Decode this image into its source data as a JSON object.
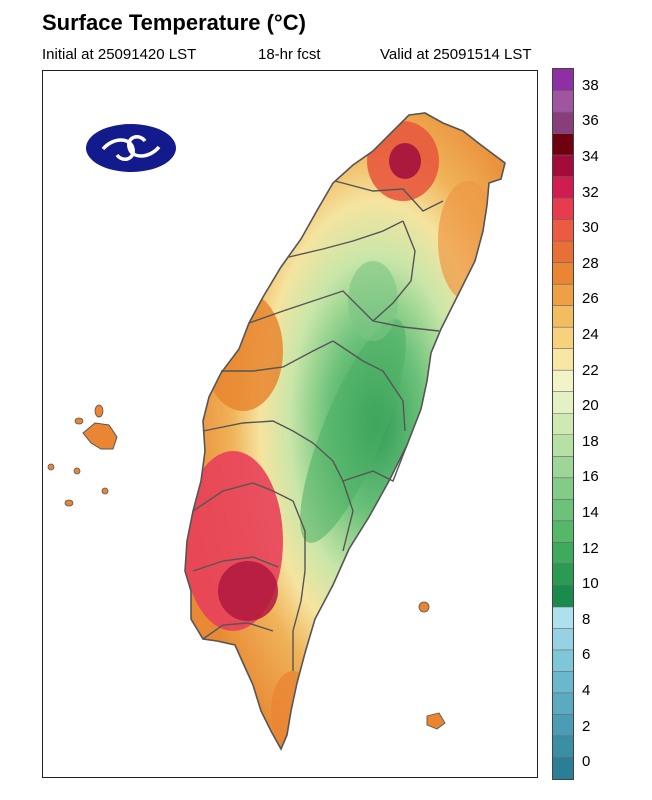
{
  "header": {
    "title": "Surface Temperature (°C)",
    "initial": "Initial at 25091420 LST",
    "forecast": "18-hr fcst",
    "valid": "Valid at 25091514 LST"
  },
  "logo": {
    "icon": "cwa-logo-icon"
  },
  "colorbar": {
    "colors": [
      "#2a7f96",
      "#3b8fa5",
      "#4a9db4",
      "#5aabc1",
      "#6bb8cd",
      "#80c6d9",
      "#96d2e3",
      "#aee0ed",
      "#1a8a4d",
      "#2b9a52",
      "#3eaa5b",
      "#55b868",
      "#6bc278",
      "#83cc88",
      "#9dd696",
      "#b7e0a4",
      "#cfe9b3",
      "#e3f1c4",
      "#f3f3c8",
      "#f8e6a4",
      "#f6d27f",
      "#f2bc60",
      "#ef9f44",
      "#ea8533",
      "#e86f35",
      "#ec5a42",
      "#e83c4e",
      "#d11c50",
      "#a30c3a",
      "#6e0010",
      "#8a3d7c",
      "#9f55a0",
      "#8e2fa4"
    ],
    "tick_labels": [
      "0",
      "2",
      "4",
      "6",
      "8",
      "10",
      "12",
      "14",
      "16",
      "18",
      "20",
      "22",
      "24",
      "26",
      "28",
      "30",
      "32",
      "34",
      "36",
      "38"
    ],
    "min": -1,
    "max": 39
  }
}
